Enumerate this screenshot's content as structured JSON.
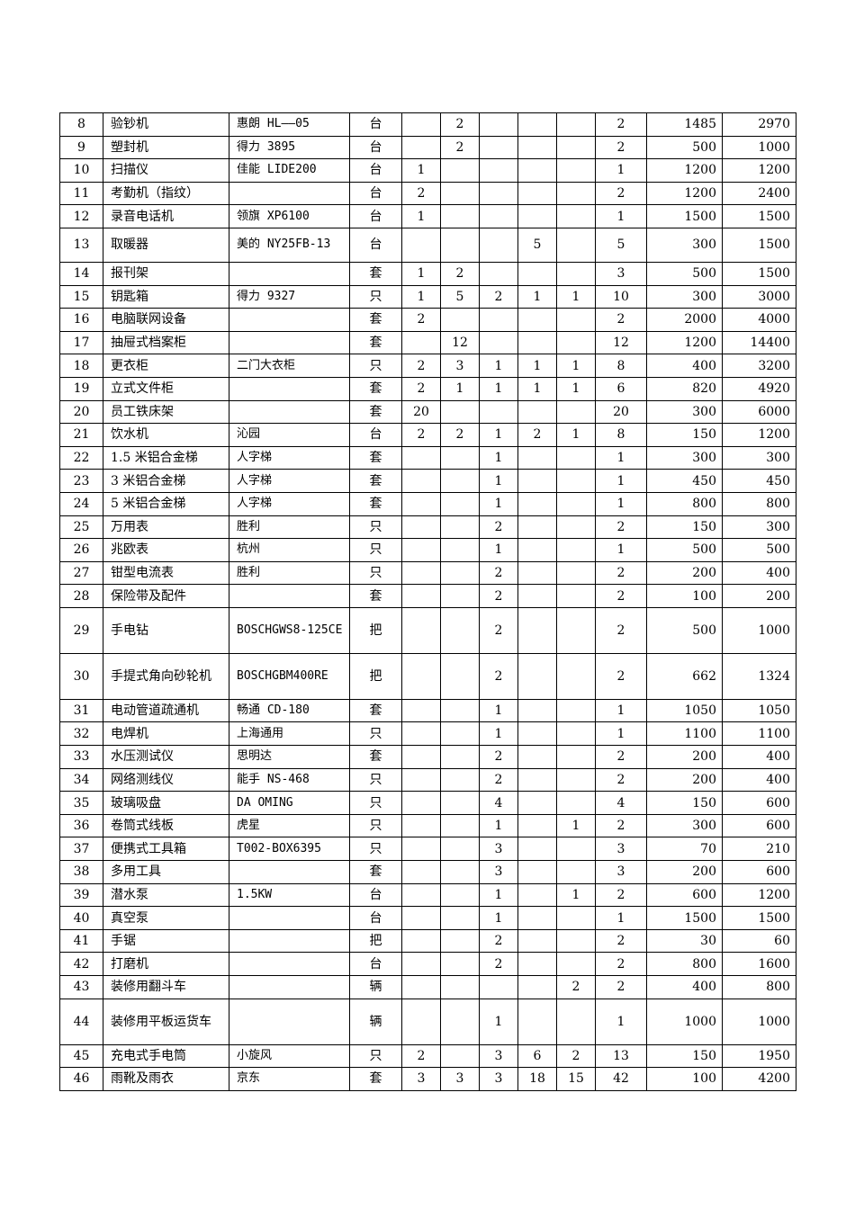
{
  "table": {
    "rows": [
      [
        "8",
        "验钞机",
        "惠朗 HL——05",
        "台",
        "",
        "2",
        "",
        "",
        "",
        "2",
        "1485",
        "2970"
      ],
      [
        "9",
        "塑封机",
        "得力 3895",
        "台",
        "",
        "2",
        "",
        "",
        "",
        "2",
        "500",
        "1000"
      ],
      [
        "10",
        "扫描仪",
        "佳能 LIDE200",
        "台",
        "1",
        "",
        "",
        "",
        "",
        "1",
        "1200",
        "1200"
      ],
      [
        "11",
        "考勤机（指纹）",
        "",
        "台",
        "2",
        "",
        "",
        "",
        "",
        "2",
        "1200",
        "2400"
      ],
      [
        "12",
        "录音电话机",
        "领旗 XP6100",
        "台",
        "1",
        "",
        "",
        "",
        "",
        "1",
        "1500",
        "1500"
      ],
      [
        "13",
        "取暖器",
        "美的 NY25FB-13",
        "台",
        "",
        "",
        "",
        "5",
        "",
        "5",
        "300",
        "1500"
      ],
      [
        "14",
        "报刊架",
        "",
        "套",
        "1",
        "2",
        "",
        "",
        "",
        "3",
        "500",
        "1500"
      ],
      [
        "15",
        "钥匙箱",
        "得力 9327",
        "只",
        "1",
        "5",
        "2",
        "1",
        "1",
        "10",
        "300",
        "3000"
      ],
      [
        "16",
        "电脑联网设备",
        "",
        "套",
        "2",
        "",
        "",
        "",
        "",
        "2",
        "2000",
        "4000"
      ],
      [
        "17",
        "抽屉式档案柜",
        "",
        "套",
        "",
        "12",
        "",
        "",
        "",
        "12",
        "1200",
        "14400"
      ],
      [
        "18",
        "更衣柜",
        "二门大衣柜",
        "只",
        "2",
        "3",
        "1",
        "1",
        "1",
        "8",
        "400",
        "3200"
      ],
      [
        "19",
        "立式文件柜",
        "",
        "套",
        "2",
        "1",
        "1",
        "1",
        "1",
        "6",
        "820",
        "4920"
      ],
      [
        "20",
        "员工铁床架",
        "",
        "套",
        "20",
        "",
        "",
        "",
        "",
        "20",
        "300",
        "6000"
      ],
      [
        "21",
        "饮水机",
        "沁园",
        "台",
        "2",
        "2",
        "1",
        "2",
        "1",
        "8",
        "150",
        "1200"
      ],
      [
        "22",
        "1.5 米铝合金梯",
        "人字梯",
        "套",
        "",
        "",
        "1",
        "",
        "",
        "1",
        "300",
        "300"
      ],
      [
        "23",
        "3 米铝合金梯",
        "人字梯",
        "套",
        "",
        "",
        "1",
        "",
        "",
        "1",
        "450",
        "450"
      ],
      [
        "24",
        "5 米铝合金梯",
        "人字梯",
        "套",
        "",
        "",
        "1",
        "",
        "",
        "1",
        "800",
        "800"
      ],
      [
        "25",
        "万用表",
        "胜利",
        "只",
        "",
        "",
        "2",
        "",
        "",
        "2",
        "150",
        "300"
      ],
      [
        "26",
        "兆欧表",
        "杭州",
        "只",
        "",
        "",
        "1",
        "",
        "",
        "1",
        "500",
        "500"
      ],
      [
        "27",
        "钳型电流表",
        "胜利",
        "只",
        "",
        "",
        "2",
        "",
        "",
        "2",
        "200",
        "400"
      ],
      [
        "28",
        "保险带及配件",
        "",
        "套",
        "",
        "",
        "2",
        "",
        "",
        "2",
        "100",
        "200"
      ],
      [
        "29",
        "手电钻",
        "BOSCHGWS8-125CE",
        "把",
        "",
        "",
        "2",
        "",
        "",
        "2",
        "500",
        "1000"
      ],
      [
        "30",
        "手提式角向砂轮机",
        "BOSCHGBM400RE",
        "把",
        "",
        "",
        "2",
        "",
        "",
        "2",
        "662",
        "1324"
      ],
      [
        "31",
        "电动管道疏通机",
        "畅通 CD-180",
        "套",
        "",
        "",
        "1",
        "",
        "",
        "1",
        "1050",
        "1050"
      ],
      [
        "32",
        "电焊机",
        "上海通用",
        "只",
        "",
        "",
        "1",
        "",
        "",
        "1",
        "1100",
        "1100"
      ],
      [
        "33",
        "水压测试仪",
        "思明达",
        "套",
        "",
        "",
        "2",
        "",
        "",
        "2",
        "200",
        "400"
      ],
      [
        "34",
        "网络测线仪",
        "能手 NS-468",
        "只",
        "",
        "",
        "2",
        "",
        "",
        "2",
        "200",
        "400"
      ],
      [
        "35",
        "玻璃吸盘",
        "DA OMING",
        "只",
        "",
        "",
        "4",
        "",
        "",
        "4",
        "150",
        "600"
      ],
      [
        "36",
        "卷筒式线板",
        "虎星",
        "只",
        "",
        "",
        "1",
        "",
        "1",
        "2",
        "300",
        "600"
      ],
      [
        "37",
        "便携式工具箱",
        "T002-BOX6395",
        "只",
        "",
        "",
        "3",
        "",
        "",
        "3",
        "70",
        "210"
      ],
      [
        "38",
        "多用工具",
        "",
        "套",
        "",
        "",
        "3",
        "",
        "",
        "3",
        "200",
        "600"
      ],
      [
        "39",
        "潜水泵",
        "1.5KW",
        "台",
        "",
        "",
        "1",
        "",
        "1",
        "2",
        "600",
        "1200"
      ],
      [
        "40",
        "真空泵",
        "",
        "台",
        "",
        "",
        "1",
        "",
        "",
        "1",
        "1500",
        "1500"
      ],
      [
        "41",
        "手锯",
        "",
        "把",
        "",
        "",
        "2",
        "",
        "",
        "2",
        "30",
        "60"
      ],
      [
        "42",
        "打磨机",
        "",
        "台",
        "",
        "",
        "2",
        "",
        "",
        "2",
        "800",
        "1600"
      ],
      [
        "43",
        "装修用翻斗车",
        "",
        "辆",
        "",
        "",
        "",
        "",
        "2",
        "2",
        "400",
        "800"
      ],
      [
        "44",
        "装修用平板运货车",
        "",
        "辆",
        "",
        "",
        "1",
        "",
        "",
        "1",
        "1000",
        "1000"
      ],
      [
        "45",
        "充电式手电筒",
        "小旋风",
        "只",
        "2",
        "",
        "3",
        "6",
        "2",
        "13",
        "150",
        "1950"
      ],
      [
        "46",
        "雨靴及雨衣",
        "京东",
        "套",
        "3",
        "3",
        "3",
        "18",
        "15",
        "42",
        "100",
        "4200"
      ]
    ]
  }
}
